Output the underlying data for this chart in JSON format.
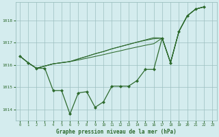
{
  "title": "Graphe pression niveau de la mer (hPa)",
  "bg_color": "#d4ecee",
  "grid_color": "#9bbfbf",
  "line_color": "#2d6a2d",
  "marker_color": "#2d6a2d",
  "xlim": [
    -0.5,
    23.5
  ],
  "ylim": [
    1013.5,
    1018.8
  ],
  "yticks": [
    1014,
    1015,
    1016,
    1017,
    1018
  ],
  "xticks": [
    0,
    1,
    2,
    3,
    4,
    5,
    6,
    7,
    8,
    9,
    10,
    11,
    12,
    13,
    14,
    15,
    16,
    17,
    18,
    19,
    20,
    21,
    22,
    23
  ],
  "x_hours": [
    0,
    1,
    2,
    3,
    4,
    5,
    6,
    7,
    8,
    9,
    10,
    11,
    12,
    13,
    14,
    15,
    16,
    17,
    18,
    19,
    20,
    21,
    22
  ],
  "series1": [
    1016.4,
    1016.1,
    1015.85,
    1015.85,
    1014.85,
    1014.85,
    1013.8,
    1014.75,
    1014.8,
    1014.1,
    1014.35,
    1015.05,
    1015.05,
    1015.05,
    1015.3,
    1015.8,
    1015.8,
    1017.2,
    1016.1,
    1017.5,
    1018.2,
    1018.5,
    1018.6
  ],
  "series2": [
    1016.4,
    1016.1,
    1015.85,
    1015.95,
    1016.05,
    1016.1,
    1016.15,
    1016.27,
    1016.38,
    1016.5,
    1016.6,
    1016.72,
    1016.82,
    1016.92,
    1017.02,
    1017.12,
    1017.22,
    1017.2,
    1016.1,
    1017.5,
    1018.2,
    1018.5,
    1018.6
  ],
  "series3": [
    1016.4,
    1016.1,
    1015.85,
    1015.95,
    1016.05,
    1016.1,
    1016.15,
    1016.27,
    1016.38,
    1016.5,
    1016.6,
    1016.72,
    1016.82,
    1016.92,
    1017.02,
    1017.1,
    1017.17,
    1017.2,
    1016.1,
    1017.5,
    1018.2,
    1018.5,
    1018.6
  ],
  "series4": [
    1016.4,
    1016.1,
    1015.85,
    1015.95,
    1016.05,
    1016.1,
    1016.15,
    1016.22,
    1016.3,
    1016.38,
    1016.46,
    1016.55,
    1016.63,
    1016.72,
    1016.8,
    1016.88,
    1016.95,
    1017.2,
    1016.1,
    1017.5,
    1018.2,
    1018.5,
    1018.6
  ]
}
